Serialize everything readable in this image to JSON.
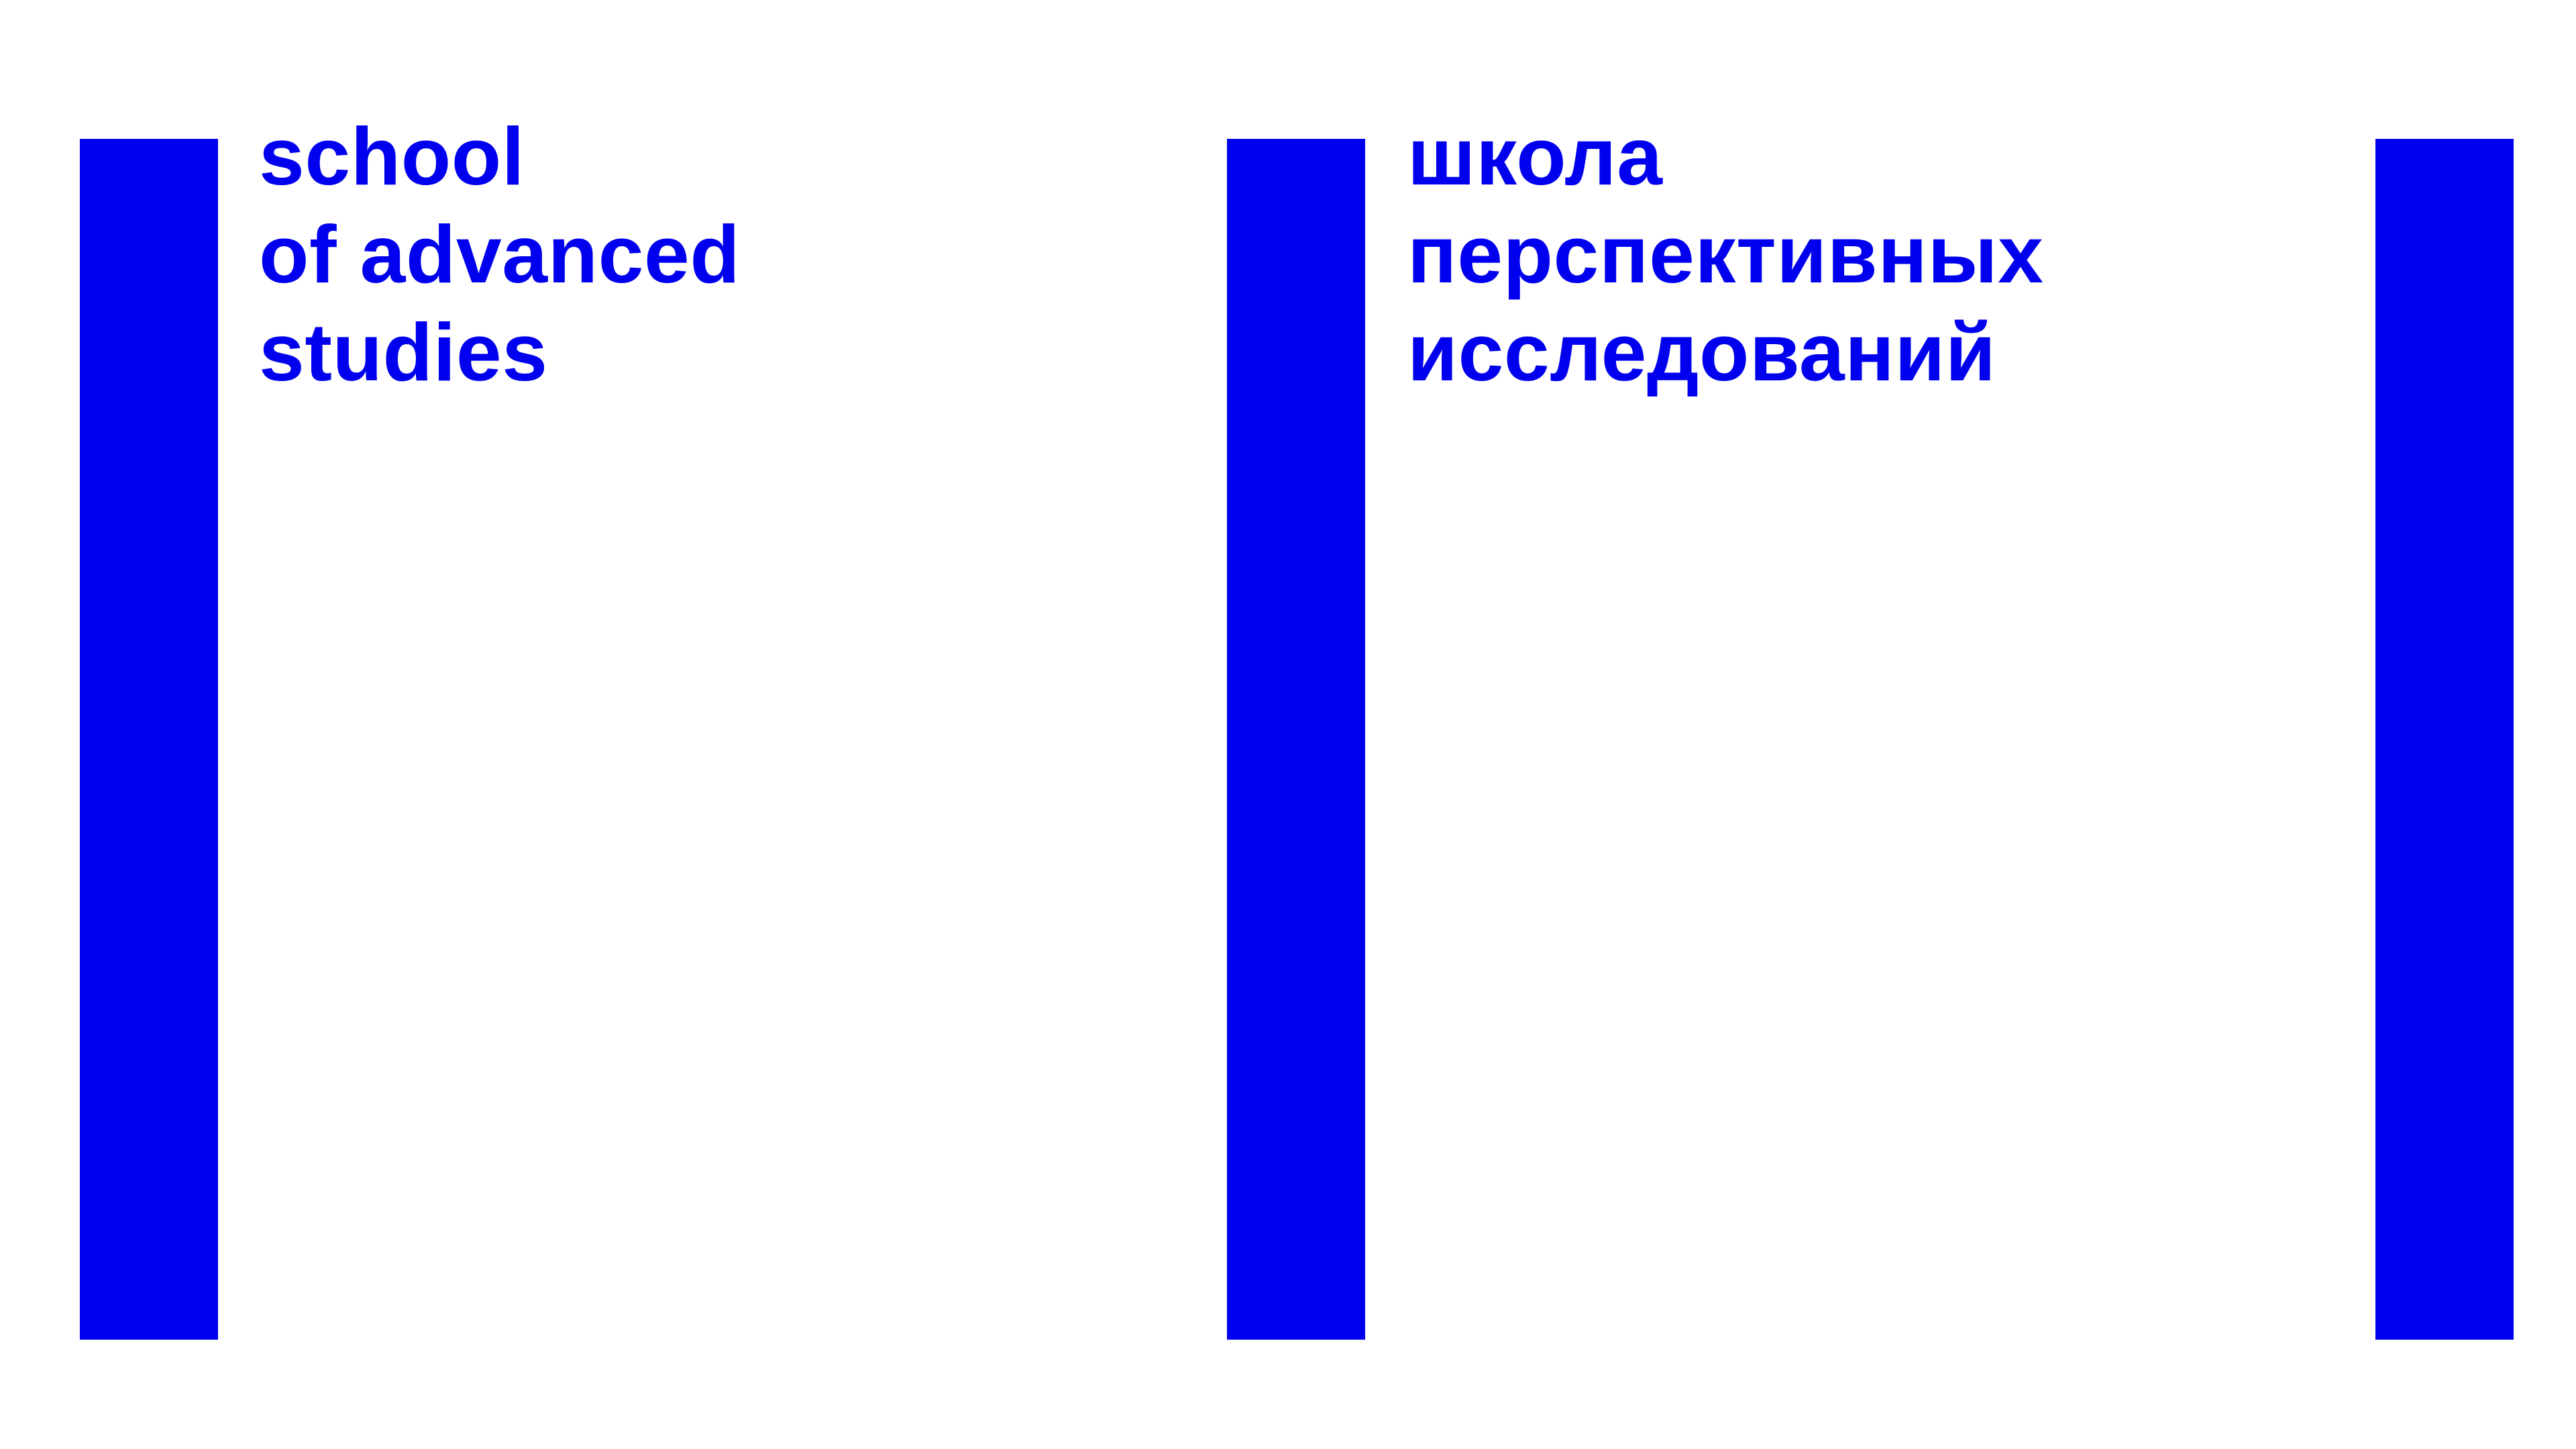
{
  "logo": {
    "color": "#0000ee",
    "background": "#ffffff",
    "english": {
      "lines": [
        "school",
        "of advanced",
        "studies"
      ]
    },
    "russian": {
      "lines": [
        "школа",
        "перспективных",
        "исследований"
      ]
    }
  }
}
